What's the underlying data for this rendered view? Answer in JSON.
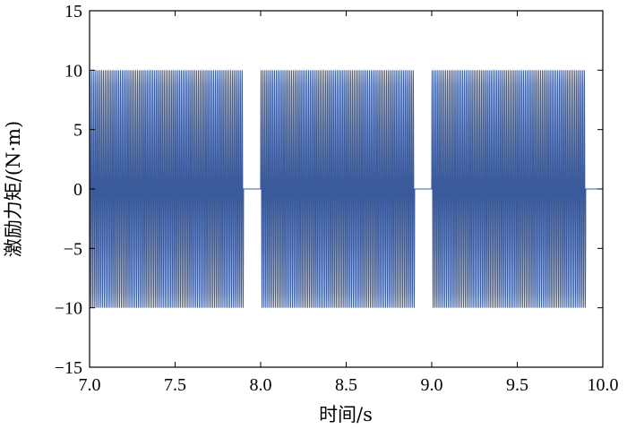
{
  "chart_data": {
    "type": "line",
    "title": "",
    "xlabel": "时间/s",
    "ylabel": "激励力矩/(N·m)",
    "xlim": [
      7.0,
      10.0
    ],
    "ylim": [
      -15,
      15
    ],
    "xticks": [
      7.0,
      7.5,
      8.0,
      8.5,
      9.0,
      9.5,
      10.0
    ],
    "xtick_labels": [
      "7.0",
      "7.5",
      "8.0",
      "8.5",
      "9.0",
      "9.5",
      "10.0"
    ],
    "yticks": [
      -15,
      -10,
      -5,
      0,
      5,
      10,
      15
    ],
    "ytick_labels": [
      "−15",
      "−10",
      "−5",
      "0",
      "5",
      "10",
      "15"
    ],
    "grid": false,
    "series": [
      {
        "color": "#3a5a9b",
        "kind": "sinusoidal bursts",
        "amplitude": 10,
        "bursts": [
          {
            "start": 7.0,
            "end": 7.9,
            "cycles": 81
          },
          {
            "start": 8.0,
            "end": 8.9,
            "cycles": 81
          },
          {
            "start": 9.0,
            "end": 9.9,
            "cycles": 81
          }
        ],
        "baseline": 0
      }
    ]
  }
}
